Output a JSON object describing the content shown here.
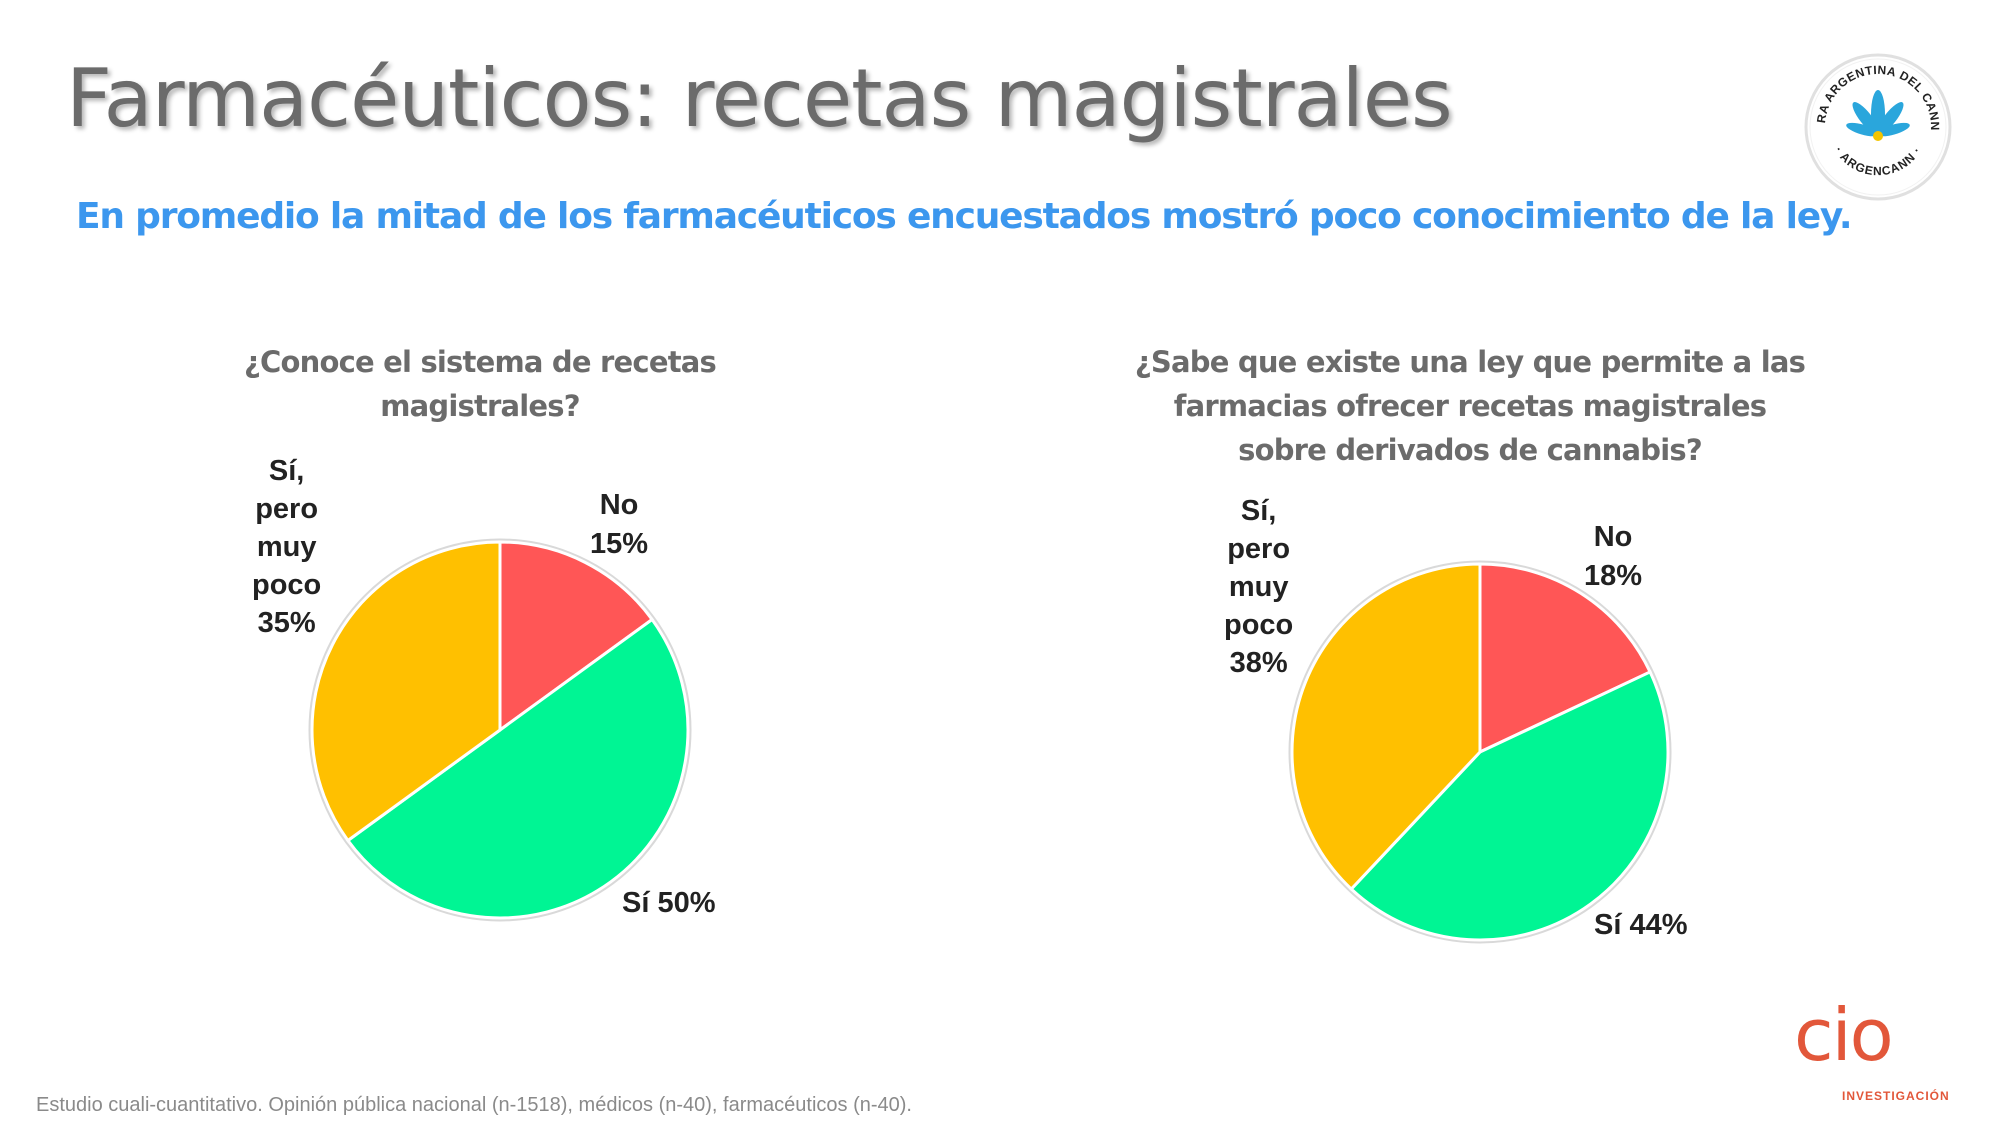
{
  "slide": {
    "title": "Farmacéuticos: recetas magistrales",
    "subtitle": "En promedio la mitad de los farmacéuticos encuestados mostró poco conocimiento de la ley.",
    "footnote": "Estudio cuali-cuantitativo. Opinión pública nacional (n-1518), médicos (n-40), farmacéuticos (n-40).",
    "logo": {
      "top_text": "CAMARA ARGENTINA DEL CANNABIS",
      "bottom_text": "· ARGENCANN ·",
      "brand": "cio",
      "brand_sub": "INVESTIGACIÓN"
    }
  },
  "colors": {
    "no": "#ff5656",
    "si": "#00f594",
    "poco": "#ffc000",
    "title": "#6b6b6b",
    "subtitle": "#3c97ee",
    "logo_blue": "#2aa6dc",
    "logo_orange": "#e2573a"
  },
  "chart_data": [
    {
      "type": "pie",
      "title": "¿Conoce el sistema de recetas magistrales?",
      "title_lines": [
        "¿Conoce el sistema de recetas magistrales?"
      ],
      "slices": [
        {
          "key": "no",
          "label": "No",
          "value": 15,
          "value_label": "15%"
        },
        {
          "key": "si",
          "label": "Sí",
          "value": 50,
          "value_label": "50%"
        },
        {
          "key": "poco",
          "label": "Sí, pero muy poco",
          "label_lines": [
            "Sí,",
            "pero",
            "muy",
            "poco"
          ],
          "value": 35,
          "value_label": "35%"
        }
      ]
    },
    {
      "type": "pie",
      "title": "¿Sabe que existe una ley que permite a las farmacias ofrecer recetas magistrales sobre derivados de cannabis?",
      "title_lines": [
        "¿Sabe que existe una ley que permite a las",
        "farmacias ofrecer recetas magistrales",
        "sobre derivados de cannabis?"
      ],
      "slices": [
        {
          "key": "no",
          "label": "No",
          "value": 18,
          "value_label": "18%"
        },
        {
          "key": "si",
          "label": "Sí",
          "value": 44,
          "value_label": "44%"
        },
        {
          "key": "poco",
          "label": "Sí, pero muy poco",
          "label_lines": [
            "Sí,",
            "pero",
            "muy",
            "poco"
          ],
          "value": 38,
          "value_label": "38%"
        }
      ]
    }
  ]
}
